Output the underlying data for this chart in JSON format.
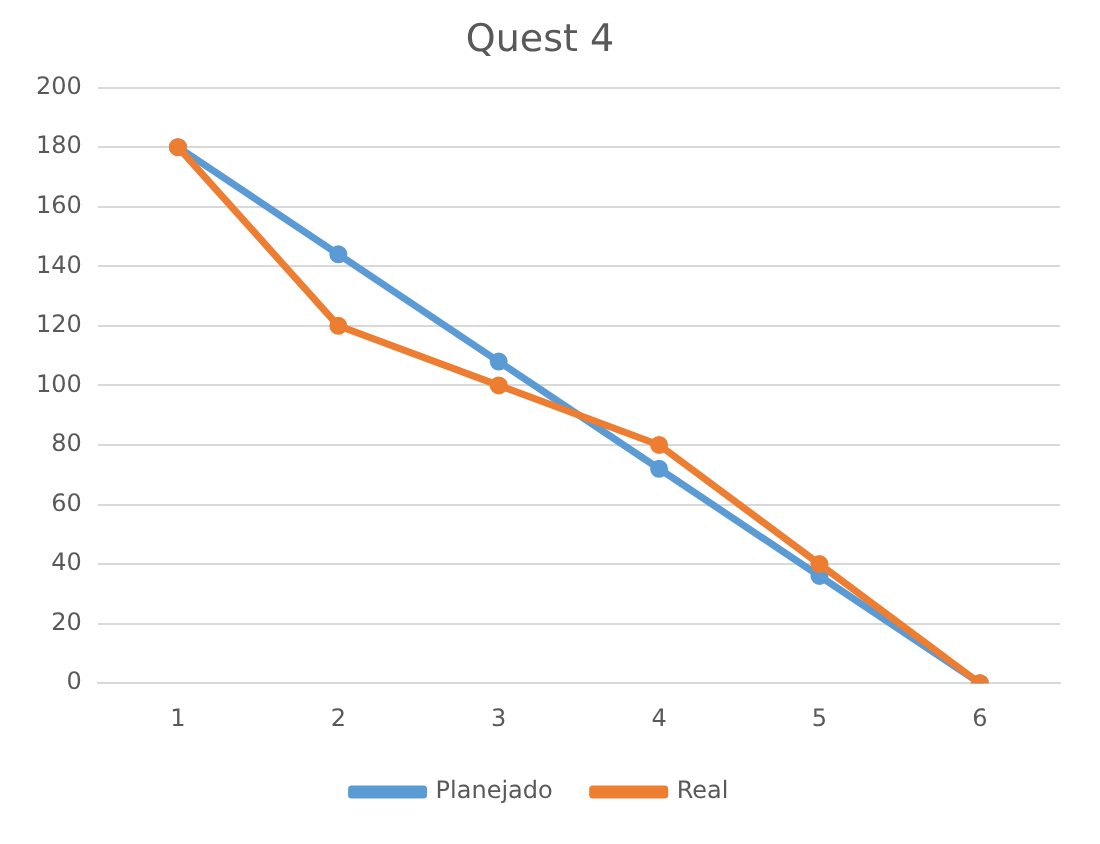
{
  "chart_data": {
    "type": "line",
    "title": "Quest 4",
    "categories": [
      "1",
      "2",
      "3",
      "4",
      "5",
      "6"
    ],
    "series": [
      {
        "name": "Planejado",
        "color": "#5b9bd5",
        "values": [
          180,
          144,
          108,
          72,
          36,
          0
        ]
      },
      {
        "name": "Real",
        "color": "#ed7d31",
        "values": [
          180,
          120,
          100,
          80,
          40,
          0
        ]
      }
    ],
    "ylim": [
      0,
      200
    ],
    "yticks": [
      0,
      20,
      40,
      60,
      80,
      100,
      120,
      140,
      160,
      180,
      200
    ],
    "grid": "y",
    "legend": "bottom",
    "marker": "circle",
    "line_style": "solid"
  }
}
